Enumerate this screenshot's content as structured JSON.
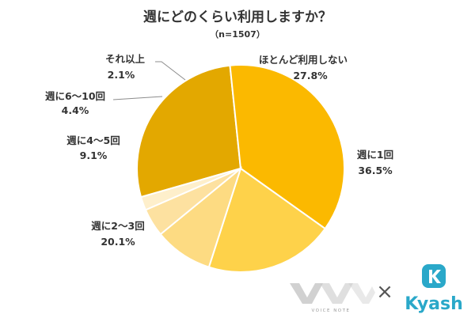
{
  "chart_data": {
    "type": "pie",
    "title": "週にどのくらい利用しますか？",
    "subtitle": "（n=1507）",
    "slices": [
      {
        "label": "ほとんど利用しない",
        "value": 27.8,
        "value_label": "27.8%",
        "color": "#E3A800"
      },
      {
        "label": "週に1回",
        "value": 36.5,
        "value_label": "36.5%",
        "color": "#FBB900"
      },
      {
        "label": "週に2〜3回",
        "value": 20.1,
        "value_label": "20.1%",
        "color": "#FED24A"
      },
      {
        "label": "週に4〜5回",
        "value": 9.1,
        "value_label": "9.1%",
        "color": "#FDDB82"
      },
      {
        "label": "週に6〜10回",
        "value": 4.4,
        "value_label": "4.4%",
        "color": "#FDE1A0"
      },
      {
        "label": "それ以上",
        "value": 2.1,
        "value_label": "2.1%",
        "color": "#FEEFCB"
      }
    ]
  },
  "logos": {
    "left_text": "VOICE NOTE",
    "times": "×",
    "right_text": "Kyash",
    "kyash_color": "#2AA8C9"
  }
}
